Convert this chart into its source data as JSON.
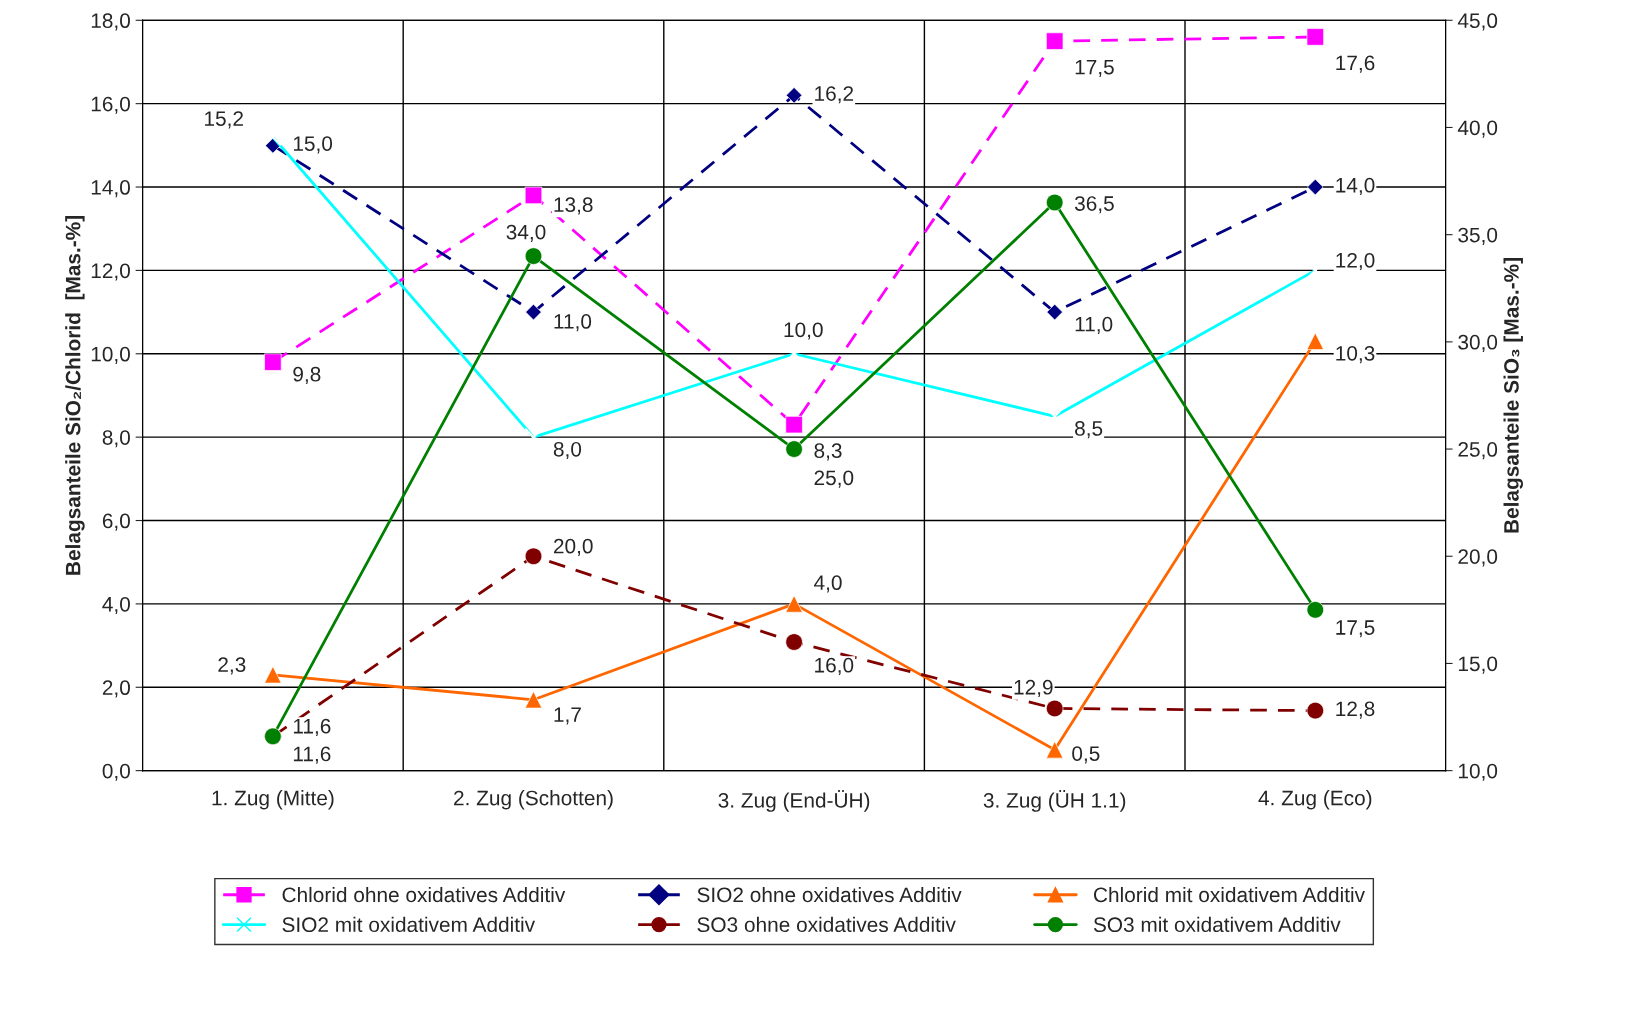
{
  "chart_data": {
    "type": "line",
    "categories": [
      "1. Zug (Mitte)",
      "2. Zug (Schotten)",
      "3. Zug (End-ÜH)",
      "3. Zug (ÜH 1.1)",
      "4. Zug (Eco)"
    ],
    "ylabel": "Belagsanteile SiO₂/Chlorid  [Mas.-%]",
    "y2label": "Belagsanteile SiO₃ [Mas.-%]",
    "ylim": [
      0,
      18
    ],
    "yticks": [
      {
        "value": 0,
        "label": "0,0"
      },
      {
        "value": 2,
        "label": "2,0"
      },
      {
        "value": 4,
        "label": "4,0"
      },
      {
        "value": 6,
        "label": "6,0"
      },
      {
        "value": 8,
        "label": "8,0"
      },
      {
        "value": 10,
        "label": "10,0"
      },
      {
        "value": 12,
        "label": "12,0"
      },
      {
        "value": 14,
        "label": "14,0"
      },
      {
        "value": 16,
        "label": "16,0"
      },
      {
        "value": 18,
        "label": "18,0"
      }
    ],
    "y2lim": [
      10,
      45
    ],
    "y2ticks": [
      {
        "value": 10,
        "label": "10,0"
      },
      {
        "value": 15,
        "label": "15,0"
      },
      {
        "value": 20,
        "label": "20,0"
      },
      {
        "value": 25,
        "label": "25,0"
      },
      {
        "value": 30,
        "label": "30,0"
      },
      {
        "value": 35,
        "label": "35,0"
      },
      {
        "value": 40,
        "label": "40,0"
      },
      {
        "value": 45,
        "label": "45,0"
      }
    ],
    "grid": true,
    "legend": "bottom",
    "series": [
      {
        "name": "Chlorid ohne oxidatives Additiv",
        "color": "#ff00ff",
        "marker": "square",
        "line_style": "dashed",
        "values": [
          9.8,
          13.8,
          8.3,
          17.5,
          17.6
        ],
        "value_labels": [
          "9,8",
          "13,8",
          "8,3",
          "17,5",
          "17,6"
        ]
      },
      {
        "name": "SIO2 ohne oxidatives Additiv",
        "color": "#000080",
        "marker": "diamond",
        "line_style": "dashed",
        "values": [
          15.0,
          11.0,
          16.2,
          11.0,
          14.0
        ],
        "value_labels": [
          "15,0",
          "11,0",
          "16,2",
          "11,0",
          "14,0"
        ]
      },
      {
        "name": "Chlorid mit oxidativem Additiv",
        "color": "#ff6600",
        "marker": "triangle",
        "line_style": "solid",
        "values": [
          2.3,
          1.7,
          4.0,
          0.5,
          10.3
        ],
        "value_labels": [
          "2,3",
          "1,7",
          "4,0",
          "0,5",
          "10,3"
        ]
      },
      {
        "name": "SIO2 mit oxidativem Additiv",
        "color": "#00ffff",
        "marker": "cross",
        "line_style": "solid",
        "values": [
          15.2,
          8.0,
          10.0,
          8.5,
          12.0
        ],
        "value_labels": [
          "15,2",
          "8,0",
          "10,0",
          "8,5",
          "12,0"
        ]
      },
      {
        "name": "SO3 ohne oxidatives Additiv",
        "color": "#800000",
        "marker": "circle",
        "line_style": "dashed",
        "axis": "y2",
        "values": [
          11.6,
          20.0,
          16.0,
          12.9,
          12.8
        ],
        "value_labels": [
          "11,6",
          "20,0",
          "16,0",
          "12,9",
          "12,8"
        ]
      },
      {
        "name": "SO3 mit oxidativem Additiv",
        "color": "#008000",
        "marker": "circle",
        "line_style": "solid",
        "axis": "y2",
        "values": [
          11.6,
          34.0,
          25.0,
          36.5,
          17.5
        ],
        "value_labels": [
          "11,6",
          "34,0",
          "25,0",
          "36,5",
          "17,5"
        ]
      }
    ]
  }
}
